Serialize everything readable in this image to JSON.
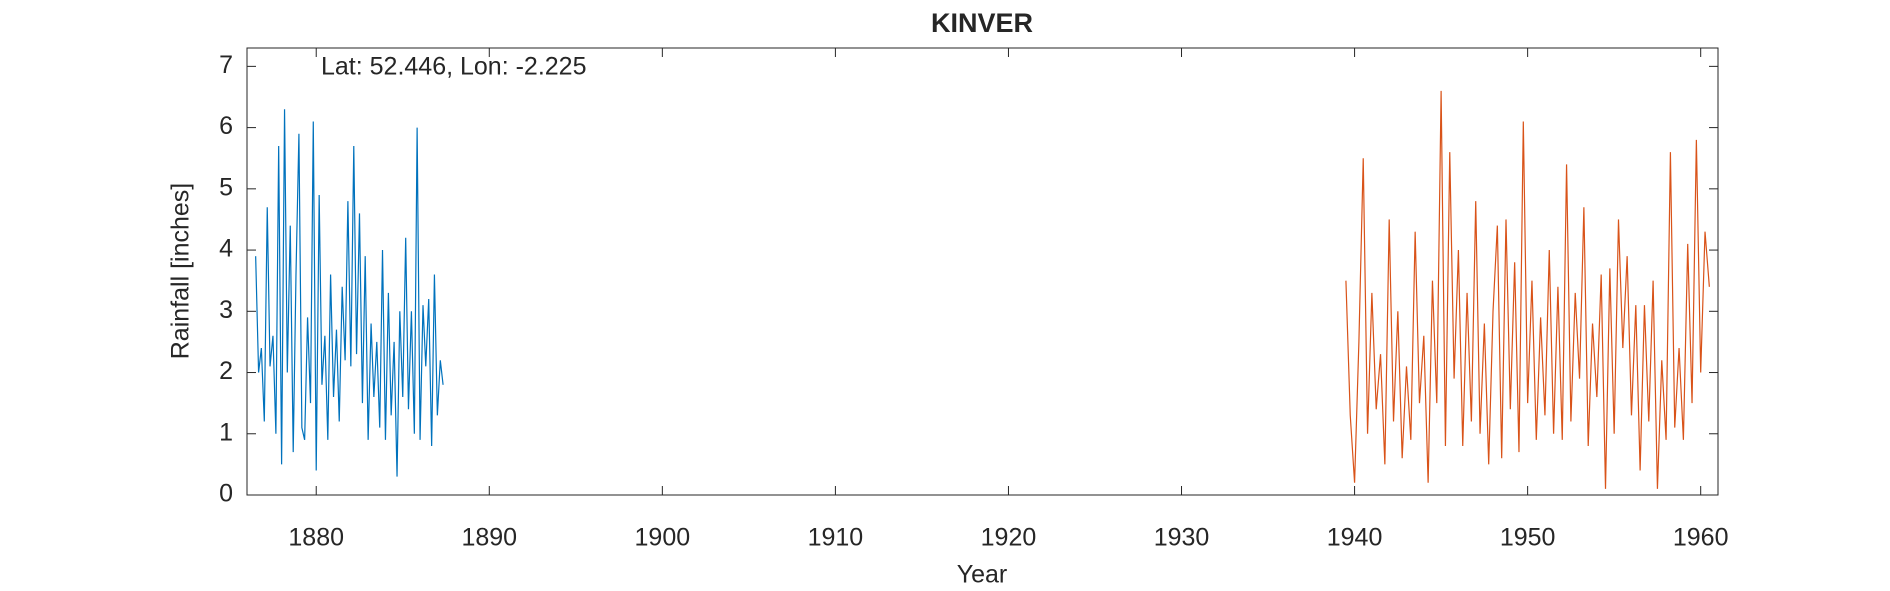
{
  "chart_data": {
    "type": "line",
    "title": "KINVER",
    "annotation": "Lat: 52.446, Lon: -2.225",
    "x_label": "Year",
    "y_label": "Rainfall [inches]",
    "xlim": [
      1876,
      1961
    ],
    "ylim": [
      0,
      7.3
    ],
    "xticks": [
      1880,
      1890,
      1900,
      1910,
      1920,
      1930,
      1940,
      1950,
      1960
    ],
    "yticks": [
      0,
      1,
      2,
      3,
      4,
      5,
      6,
      7
    ],
    "grid": false,
    "series": [
      {
        "color": "#0072BD",
        "x": [
          1876.5,
          1876.67,
          1876.83,
          1877,
          1877.17,
          1877.33,
          1877.5,
          1877.67,
          1877.83,
          1878,
          1878.17,
          1878.33,
          1878.5,
          1878.67,
          1878.83,
          1879,
          1879.17,
          1879.33,
          1879.5,
          1879.67,
          1879.83,
          1880,
          1880.17,
          1880.33,
          1880.5,
          1880.67,
          1880.83,
          1881,
          1881.17,
          1881.33,
          1881.5,
          1881.67,
          1881.83,
          1882,
          1882.17,
          1882.33,
          1882.5,
          1882.67,
          1882.83,
          1883,
          1883.17,
          1883.33,
          1883.5,
          1883.67,
          1883.83,
          1884,
          1884.17,
          1884.33,
          1884.5,
          1884.67,
          1884.83,
          1885,
          1885.17,
          1885.33,
          1885.5,
          1885.67,
          1885.83,
          1886,
          1886.17,
          1886.33,
          1886.5,
          1886.67,
          1886.83,
          1887,
          1887.17,
          1887.33
        ],
        "values": [
          3.9,
          2.0,
          2.4,
          1.2,
          4.7,
          2.1,
          2.6,
          1.0,
          5.7,
          0.5,
          6.3,
          2.0,
          4.4,
          0.7,
          3.6,
          5.9,
          1.1,
          0.9,
          2.9,
          1.5,
          6.1,
          0.4,
          4.9,
          1.8,
          2.6,
          0.9,
          3.6,
          1.6,
          2.7,
          1.2,
          3.4,
          2.2,
          4.8,
          2.1,
          5.7,
          2.3,
          4.6,
          1.5,
          3.9,
          0.9,
          2.8,
          1.6,
          2.5,
          1.1,
          4.0,
          0.9,
          3.3,
          1.3,
          2.5,
          0.3,
          3.0,
          1.6,
          4.2,
          1.4,
          3.0,
          1.0,
          6.0,
          0.9,
          3.1,
          2.1,
          3.2,
          0.8,
          3.6,
          1.3,
          2.2,
          1.8
        ]
      },
      {
        "color": "#D95319",
        "x": [
          1939.5,
          1939.75,
          1940,
          1940.25,
          1940.5,
          1940.75,
          1941,
          1941.25,
          1941.5,
          1941.75,
          1942,
          1942.25,
          1942.5,
          1942.75,
          1943,
          1943.25,
          1943.5,
          1943.75,
          1944,
          1944.25,
          1944.5,
          1944.75,
          1945,
          1945.25,
          1945.5,
          1945.75,
          1946,
          1946.25,
          1946.5,
          1946.75,
          1947,
          1947.25,
          1947.5,
          1947.75,
          1948,
          1948.25,
          1948.5,
          1948.75,
          1949,
          1949.25,
          1949.5,
          1949.75,
          1950,
          1950.25,
          1950.5,
          1950.75,
          1951,
          1951.25,
          1951.5,
          1951.75,
          1952,
          1952.25,
          1952.5,
          1952.75,
          1953,
          1953.25,
          1953.5,
          1953.75,
          1954,
          1954.25,
          1954.5,
          1954.75,
          1955,
          1955.25,
          1955.5,
          1955.75,
          1956,
          1956.25,
          1956.5,
          1956.75,
          1957,
          1957.25,
          1957.5,
          1957.75,
          1958,
          1958.25,
          1958.5,
          1958.75,
          1959,
          1959.25,
          1959.5,
          1959.75,
          1960,
          1960.25,
          1960.5
        ],
        "values": [
          3.5,
          1.3,
          0.2,
          2.5,
          5.5,
          1.0,
          3.3,
          1.4,
          2.3,
          0.5,
          4.5,
          1.2,
          3.0,
          0.6,
          2.1,
          0.9,
          4.3,
          1.5,
          2.6,
          0.2,
          3.5,
          1.5,
          6.6,
          0.8,
          5.6,
          1.9,
          4.0,
          0.8,
          3.3,
          1.2,
          4.8,
          1.0,
          2.8,
          0.5,
          3.0,
          4.4,
          0.6,
          4.5,
          1.4,
          3.8,
          0.7,
          6.1,
          1.5,
          3.5,
          0.9,
          2.9,
          1.3,
          4.0,
          1.0,
          3.4,
          0.9,
          5.4,
          1.2,
          3.3,
          1.9,
          4.7,
          0.8,
          2.8,
          1.6,
          3.6,
          0.1,
          3.7,
          1.0,
          4.5,
          2.4,
          3.9,
          1.3,
          3.1,
          0.4,
          3.1,
          1.2,
          3.5,
          0.1,
          2.2,
          0.9,
          5.6,
          1.1,
          2.4,
          0.9,
          4.1,
          1.5,
          5.8,
          2.0,
          4.3,
          3.4
        ]
      }
    ]
  }
}
